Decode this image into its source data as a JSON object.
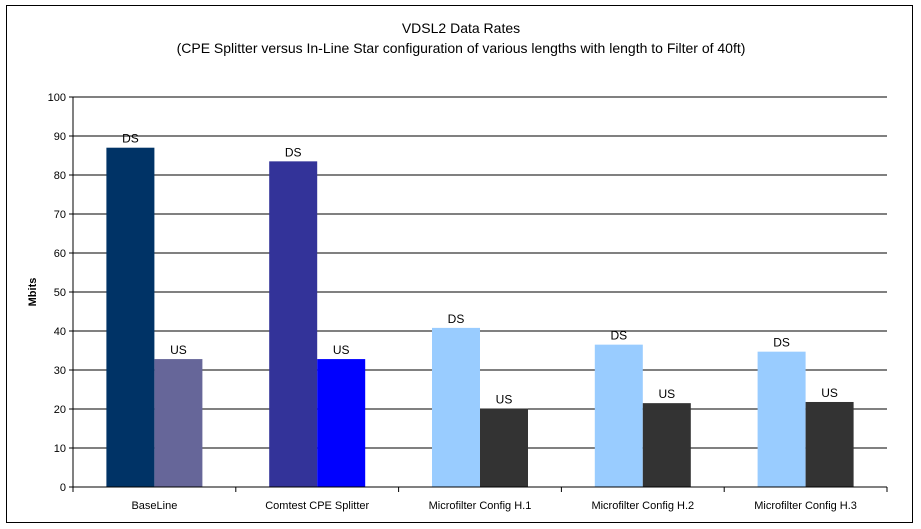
{
  "chart_data": {
    "type": "bar",
    "title": "VDSL2 Data Rates",
    "subtitle": "(CPE Splitter versus In-Line Star configuration of various lengths with length to Filter of 40ft)",
    "xlabel": "",
    "ylabel": "Mbits",
    "ylim": [
      0,
      100
    ],
    "yticks": [
      0,
      10,
      20,
      30,
      40,
      50,
      60,
      70,
      80,
      90,
      100
    ],
    "grid": true,
    "legend": "none",
    "categories": [
      "BaseLine",
      "Comtest CPE Splitter",
      "Microfilter Config H.1",
      "Microfilter Config H.2",
      "Microfilter Config H.3"
    ],
    "series": [
      {
        "values": [
          87,
          83.5,
          40.8,
          36.5,
          34.7
        ],
        "data_labels": [
          "DS",
          "DS",
          "DS",
          "DS",
          "DS"
        ],
        "colors": [
          "#003366",
          "#333399",
          "#99CCFF",
          "#99CCFF",
          "#99CCFF"
        ]
      },
      {
        "values": [
          32.8,
          32.8,
          20.1,
          21.5,
          21.8
        ],
        "data_labels": [
          "US",
          "US",
          "US",
          "US",
          "US"
        ],
        "colors": [
          "#666699",
          "#0000FF",
          "#333333",
          "#333333",
          "#333333"
        ]
      }
    ]
  }
}
